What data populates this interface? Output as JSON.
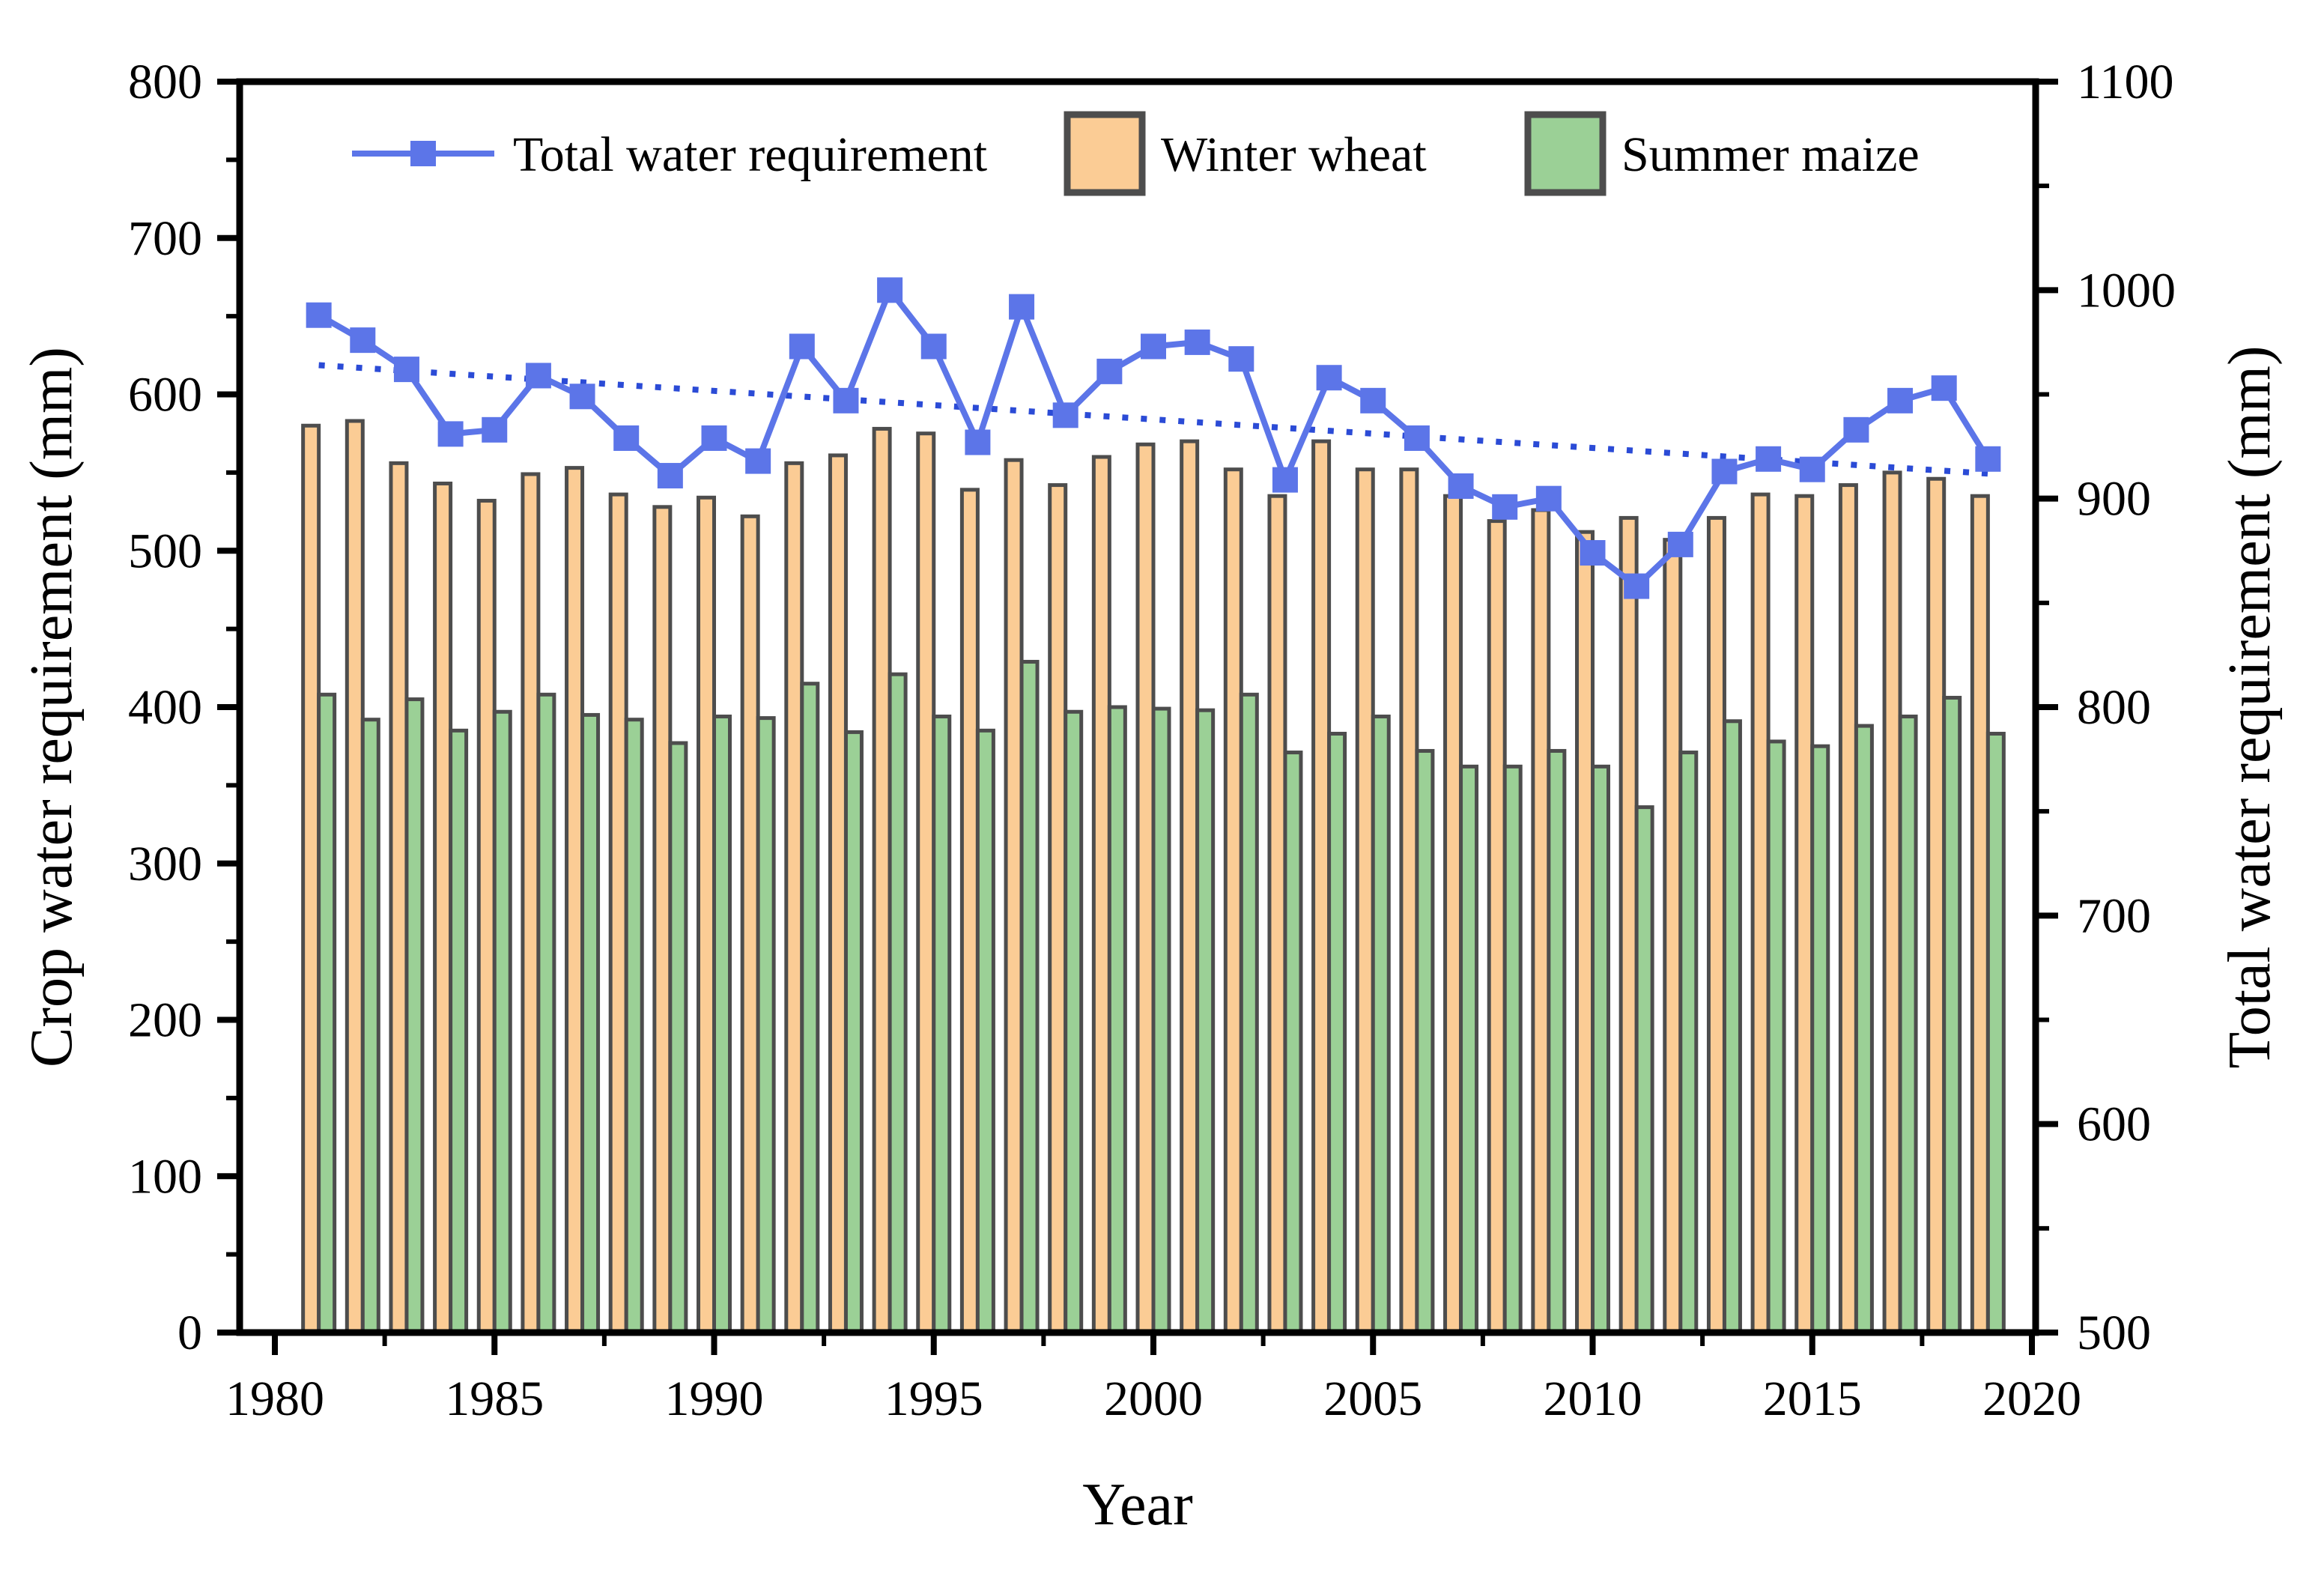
{
  "chart_data": {
    "type": "bar-line-combo",
    "title": "",
    "xlabel": "Year",
    "ylabel_left": "Crop water requirement (mm)",
    "ylabel_right": "Total water requirement (mm)",
    "x_range": [
      1980,
      2020
    ],
    "ylim_left": [
      0,
      800
    ],
    "ylim_right": [
      500,
      1100
    ],
    "x_major_ticks": [
      1980,
      1985,
      1990,
      1995,
      2000,
      2005,
      2010,
      2015,
      2020
    ],
    "x_minor_ticks": [
      1982.5,
      1987.5,
      1992.5,
      1997.5,
      2002.5,
      2007.5,
      2012.5,
      2017.5
    ],
    "left_major_ticks": [
      0,
      100,
      200,
      300,
      400,
      500,
      600,
      700,
      800
    ],
    "left_minor_ticks": [
      50,
      150,
      250,
      350,
      450,
      550,
      650,
      750
    ],
    "right_major_ticks": [
      500,
      600,
      700,
      800,
      900,
      1000,
      1100
    ],
    "right_minor_ticks": [
      550,
      650,
      750,
      850,
      950,
      1050
    ],
    "grid": false,
    "legend_position": "top-inside",
    "years": [
      1981,
      1982,
      1983,
      1984,
      1985,
      1986,
      1987,
      1988,
      1989,
      1990,
      1991,
      1992,
      1993,
      1994,
      1995,
      1996,
      1997,
      1998,
      1999,
      2000,
      2001,
      2002,
      2003,
      2004,
      2005,
      2006,
      2007,
      2008,
      2009,
      2010,
      2011,
      2012,
      2013,
      2014,
      2015,
      2016,
      2017,
      2018,
      2019
    ],
    "series": [
      {
        "name": "Total water requirement",
        "type": "line",
        "axis": "right",
        "color": "#5C75E8",
        "marker": "square",
        "values": [
          988,
          976,
          962,
          931,
          933,
          959,
          949,
          929,
          911,
          929,
          918,
          973,
          947,
          1000,
          973,
          927,
          992,
          940,
          961,
          973,
          975,
          967,
          909,
          958,
          947,
          929,
          906,
          896,
          900,
          874,
          858,
          878,
          913,
          919,
          914,
          933,
          947,
          953,
          919
        ]
      },
      {
        "name": "Winter wheat",
        "type": "bar",
        "axis": "left",
        "color": "#FBCC95",
        "border": "#4D4D4D",
        "values": [
          580,
          583,
          556,
          543,
          532,
          549,
          553,
          536,
          528,
          534,
          522,
          556,
          561,
          578,
          575,
          539,
          558,
          542,
          560,
          568,
          570,
          552,
          535,
          570,
          552,
          552,
          535,
          519,
          526,
          512,
          521,
          507,
          521,
          536,
          535,
          542,
          550,
          546,
          535
        ]
      },
      {
        "name": "Summer maize",
        "type": "bar",
        "axis": "left",
        "color": "#9BD096",
        "border": "#4D4D4D",
        "values": [
          408,
          392,
          405,
          385,
          397,
          408,
          395,
          392,
          377,
          394,
          393,
          415,
          384,
          421,
          394,
          385,
          429,
          397,
          400,
          399,
          398,
          408,
          371,
          383,
          394,
          372,
          362,
          362,
          372,
          362,
          336,
          371,
          391,
          378,
          375,
          388,
          394,
          406,
          383
        ]
      }
    ],
    "trend_line": {
      "series": "Total water requirement",
      "style": "dotted",
      "color": "#2B4BD6",
      "x1": 1981,
      "y1": 964,
      "x2": 2019,
      "y2": 912
    }
  },
  "legend": {
    "items": [
      {
        "label": "Total water requirement",
        "swatch": "line-marker",
        "color": "#5C75E8"
      },
      {
        "label": "Winter wheat",
        "swatch": "box",
        "color": "#FBCC95"
      },
      {
        "label": "Summer maize",
        "swatch": "box",
        "color": "#9BD096"
      }
    ]
  },
  "colors": {
    "line": "#5C75E8",
    "trend": "#2B4BD6",
    "wheat": "#FBCC95",
    "maize": "#9BD096",
    "bar_border": "#4D4D4D",
    "axis": "#000000",
    "background": "#FFFFFF"
  }
}
